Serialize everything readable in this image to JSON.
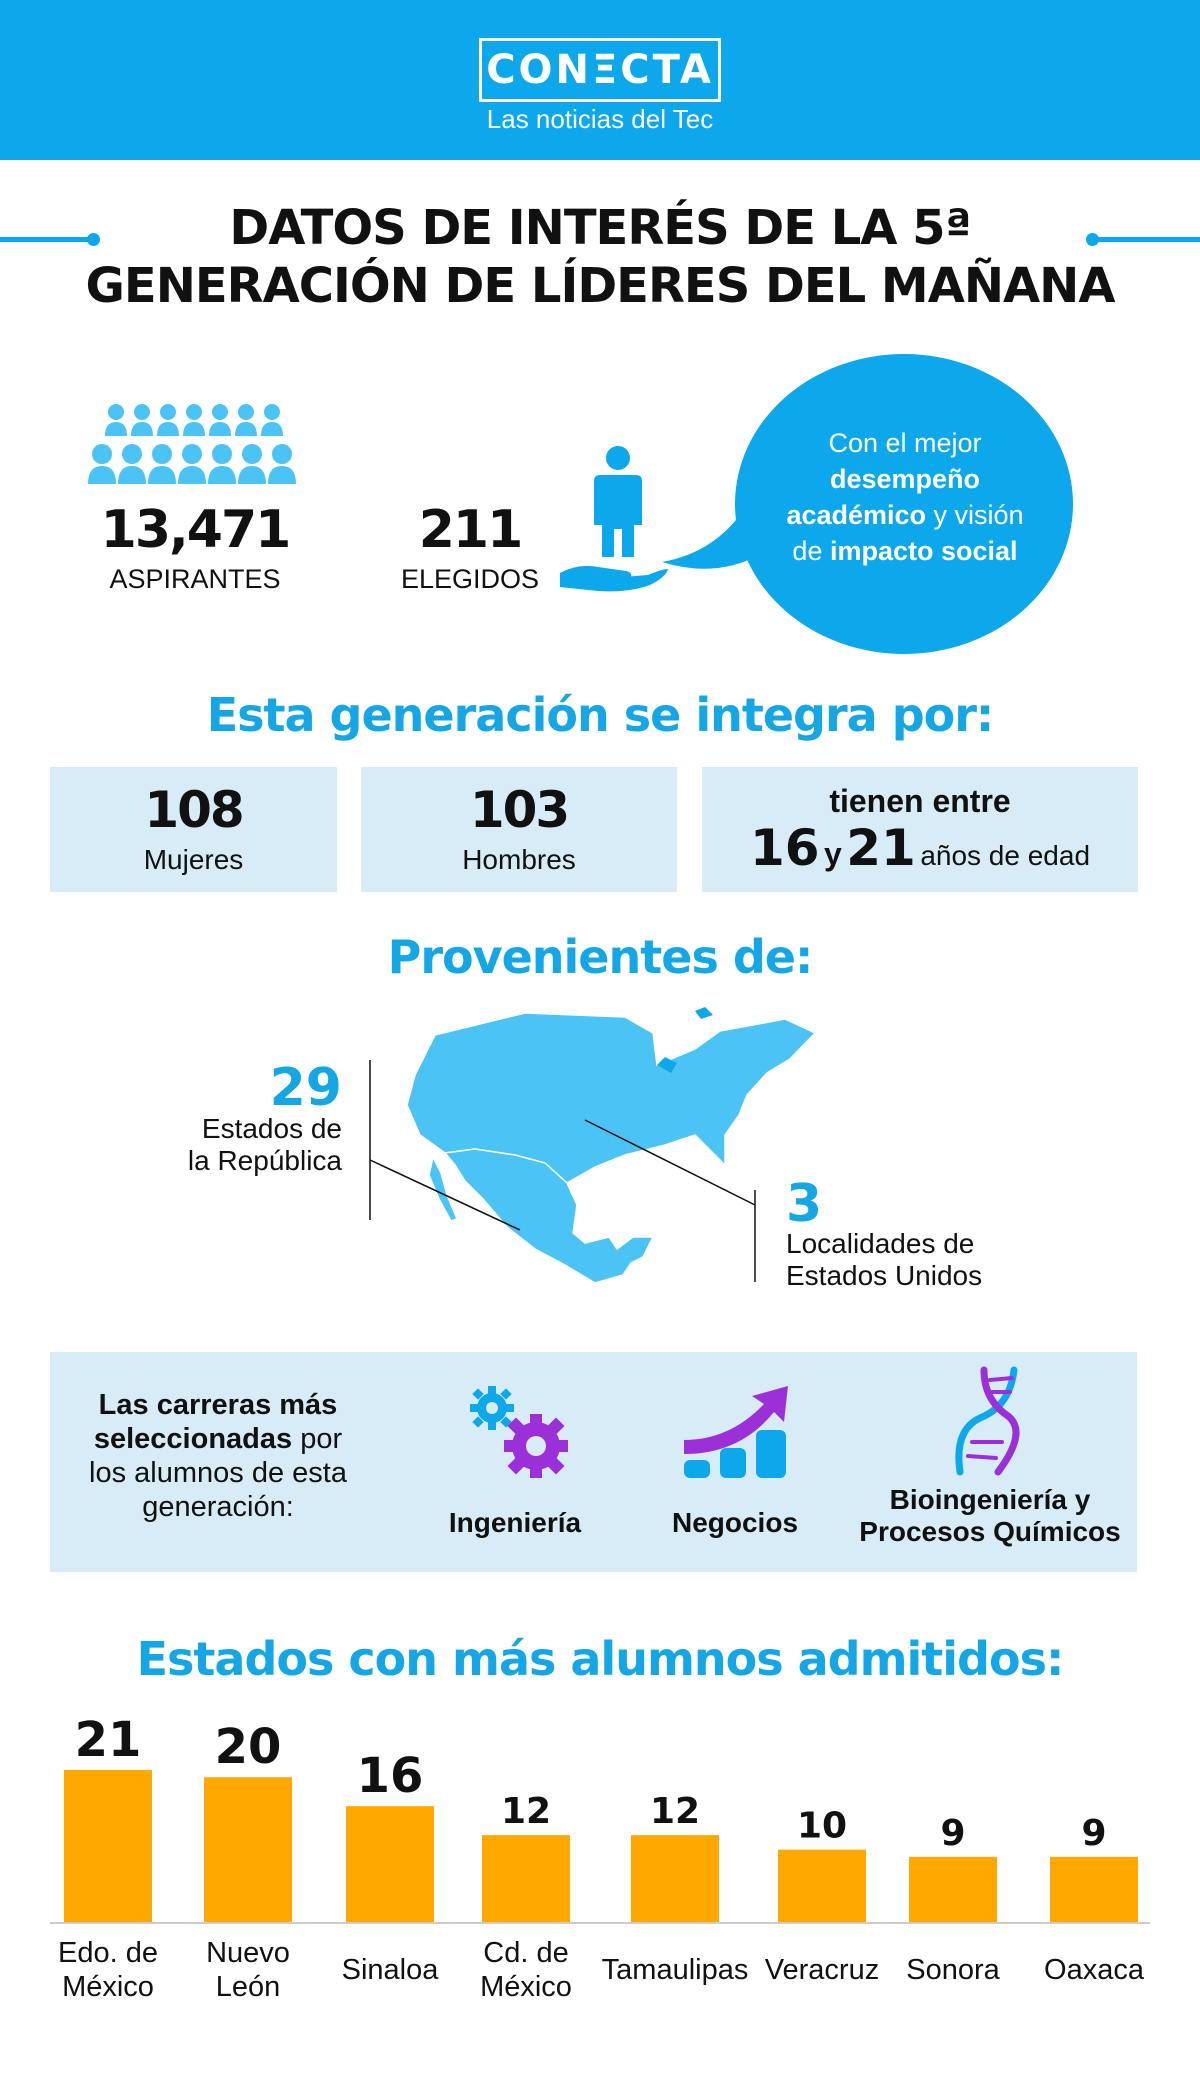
{
  "header": {
    "logo": "CONΞCTA",
    "subtitle": "Las noticias del Tec",
    "color": "#0da7ec"
  },
  "title": {
    "line1": "DATOS DE INTERÉS DE LA 5ª",
    "line2": "GENERACIÓN DE LÍDERES DEL MAÑANA"
  },
  "stats": {
    "applicants": {
      "value": "13,471",
      "label": "ASPIRANTES",
      "icon": "crowd-icon"
    },
    "selected": {
      "value": "211",
      "label": "ELEGIDOS",
      "icon": "person-in-hand-icon"
    },
    "bubble": {
      "part1": "Con el mejor",
      "part2": "desempeño",
      "part3": "académico",
      "part4": "y visión",
      "part5": "de",
      "part6": "impacto social"
    }
  },
  "composition": {
    "heading": "Esta generación se integra por:",
    "women": {
      "value": "108",
      "label": "Mujeres"
    },
    "men": {
      "value": "103",
      "label": "Hombres"
    },
    "age": {
      "intro": "tienen entre",
      "min": "16",
      "conj": "y",
      "max": "21",
      "suffix": "años de edad"
    }
  },
  "origin": {
    "heading": "Provenientes de:",
    "mexico": {
      "value": "29",
      "label_line1": "Estados de",
      "label_line2": "la República"
    },
    "usa": {
      "value": "3",
      "label_line1": "Localidades de",
      "label_line2": "Estados Unidos"
    },
    "map_color": "#4cc3f5"
  },
  "careers": {
    "intro": {
      "b1": "Las carreras más",
      "b2": "seleccionadas",
      "t2": "por",
      "t3": "los alumnos de esta",
      "t4": "generación:"
    },
    "items": [
      {
        "label": "Ingeniería",
        "icon": "gears-icon"
      },
      {
        "label": "Negocios",
        "icon": "growth-chart-icon"
      },
      {
        "label_line1": "Bioingeniería y",
        "label_line2": "Procesos Químicos",
        "icon": "dna-icon"
      }
    ],
    "accent": "#9b30d9"
  },
  "chart_heading": "Estados con más alumnos admitidos:",
  "chart_data": {
    "type": "bar",
    "categories": [
      "Edo. de México",
      "Nuevo León",
      "Sinaloa",
      "Cd. de México",
      "Tamaulipas",
      "Veracruz",
      "Sonora",
      "Oaxaca"
    ],
    "category_lines": [
      [
        "Edo. de",
        "México"
      ],
      [
        "Nuevo",
        "León"
      ],
      [
        "Sinaloa"
      ],
      [
        "Cd. de",
        "México"
      ],
      [
        "Tamaulipas"
      ],
      [
        "Veracruz"
      ],
      [
        "Sonora"
      ],
      [
        "Oaxaca"
      ]
    ],
    "values": [
      21,
      20,
      16,
      12,
      12,
      10,
      9,
      9
    ],
    "title": "Estados con más alumnos admitidos:",
    "xlabel": "",
    "ylabel": "",
    "ylim": [
      0,
      21
    ],
    "grid": false,
    "bar_color": "#ffa800"
  }
}
